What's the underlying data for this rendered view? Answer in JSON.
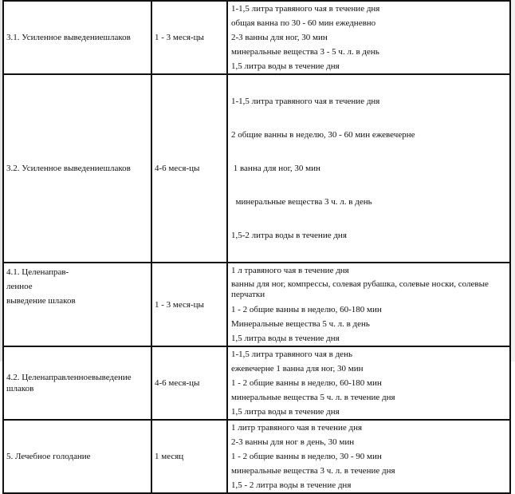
{
  "rows": [
    {
      "name": "3.1. Усиленное выведениешлаков",
      "duration": "1 - 3 меся-цы",
      "items": [
        "1-1,5 литра  травяного чая в течение дня",
        "общая ванна по 30 - 60 мин ежедневно",
        "2-3 ванны для ног, 30 мин",
        "минеральные вещества  3 - 5 ч. л. в день",
        "1,5 литра воды в течение дня"
      ]
    },
    {
      "name": "3.2. Усиленное выведениешлаков",
      "duration": "4-6 меся-цы",
      "items": [
        "1-1,5 литра травяного чая в течение дня",
        "2 общие ванны в неделю, 30 - 60 мин ежевечерне",
        " 1 ванна для ног, 30 мин",
        "  минеральные вещества 3 ч. л. в день",
        "1,5-2 литра воды в течение дня"
      ]
    },
    {
      "name_lines": [
        "4.1. Целенаправ-",
        "ленное",
        "выведение шлаков"
      ],
      "duration": "1 - 3 меся-цы",
      "items": [
        "1 л травяного чая в течение дня",
        "ванны для ног, компрессы, солевая рубашка, солевые носки, солевые перчатки",
        "1 - 2 общие ванны в неделю, 60-180 мин",
        "Минеральные вещества 5 ч. л. в день",
        "1,5 литра воды в течение дня"
      ]
    },
    {
      "name": "4.2. Целенаправленноевыведение шлаков",
      "duration": "4-6 меся-цы",
      "items": [
        "1-1,5 литра  травяного чая в день",
        "ежевечерне 1 ванна для ног, 30 мин",
        "1 - 2 общие ванны в неделю, 60-180 мин",
        "минеральные вещества  5 ч. л. в течение дня",
        "1,5 литра воды в течение дня"
      ]
    },
    {
      "name": "5. Лечебное голодание",
      "duration": "1 месяц",
      "items": [
        "1 литр  травяного чая в течение дня",
        "2-3 ванны для ног в день, 30 мин",
        "1 - 2 общие ванны в неделю, 30 - 90 мин",
        "минеральные вещества  3 ч. л. в течение дня",
        "1,5 - 2 литра воды в течение дня"
      ]
    }
  ]
}
